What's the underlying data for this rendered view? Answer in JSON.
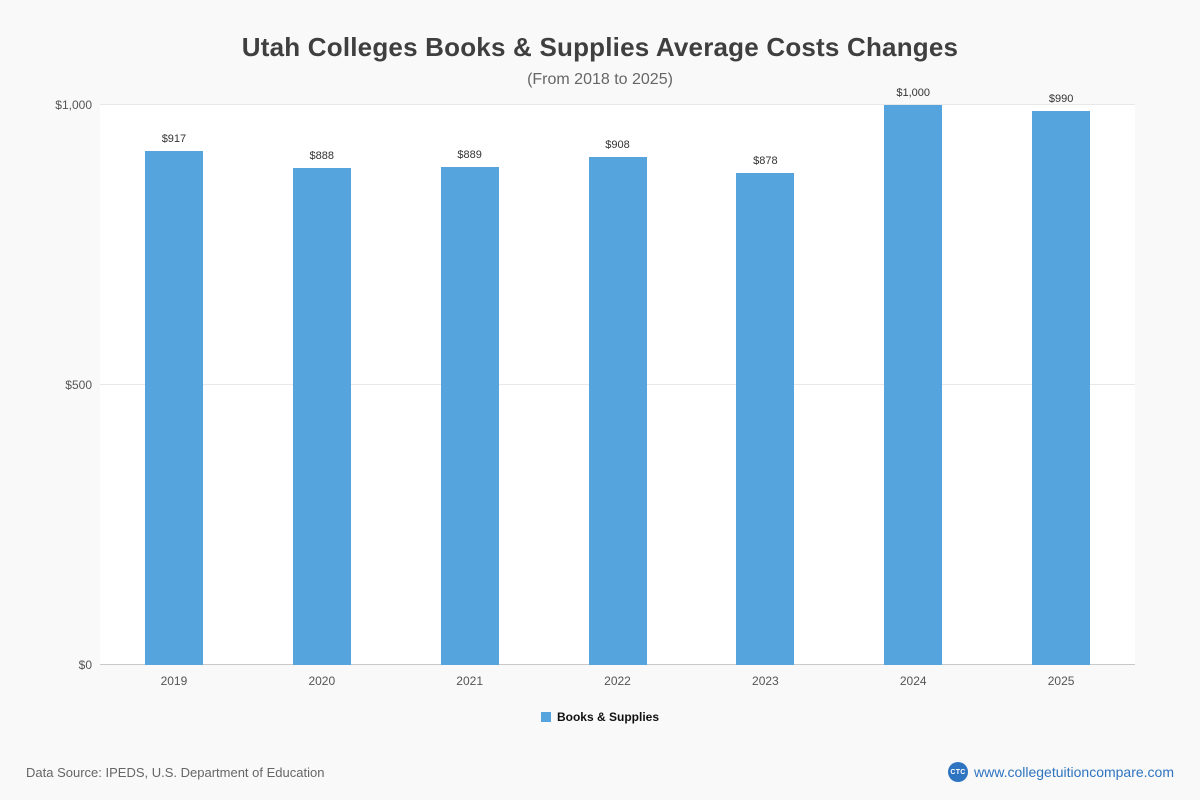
{
  "header": {
    "title": "Utah Colleges  Books & Supplies Average Costs Changes",
    "subtitle": "(From 2018 to 2025)"
  },
  "chart_data": {
    "type": "bar",
    "categories": [
      "2019",
      "2020",
      "2021",
      "2022",
      "2023",
      "2024",
      "2025"
    ],
    "values": [
      917,
      888,
      889,
      908,
      878,
      1000,
      990
    ],
    "value_labels": [
      "$917",
      "$888",
      "$889",
      "$908",
      "$878",
      "$1,000",
      "$990"
    ],
    "series_name": "Books & Supplies",
    "title": "Utah Colleges  Books & Supplies Average Costs Changes",
    "subtitle": "(From 2018 to 2025)",
    "xlabel": "",
    "ylabel": "",
    "ylim": [
      0,
      1000
    ],
    "yticks": [
      {
        "value": 0,
        "label": "$0"
      },
      {
        "value": 500,
        "label": "$500"
      },
      {
        "value": 1000,
        "label": "$1,000"
      }
    ],
    "bar_color": "#56a4dd",
    "grid": true,
    "legend_position": "bottom"
  },
  "legend": {
    "label": "Books & Supplies",
    "swatch_color": "#56a4dd"
  },
  "footer": {
    "source": "Data Source: IPEDS, U.S. Department of Education",
    "site": "www.collegetuitioncompare.com",
    "logo_text": "CTC"
  }
}
